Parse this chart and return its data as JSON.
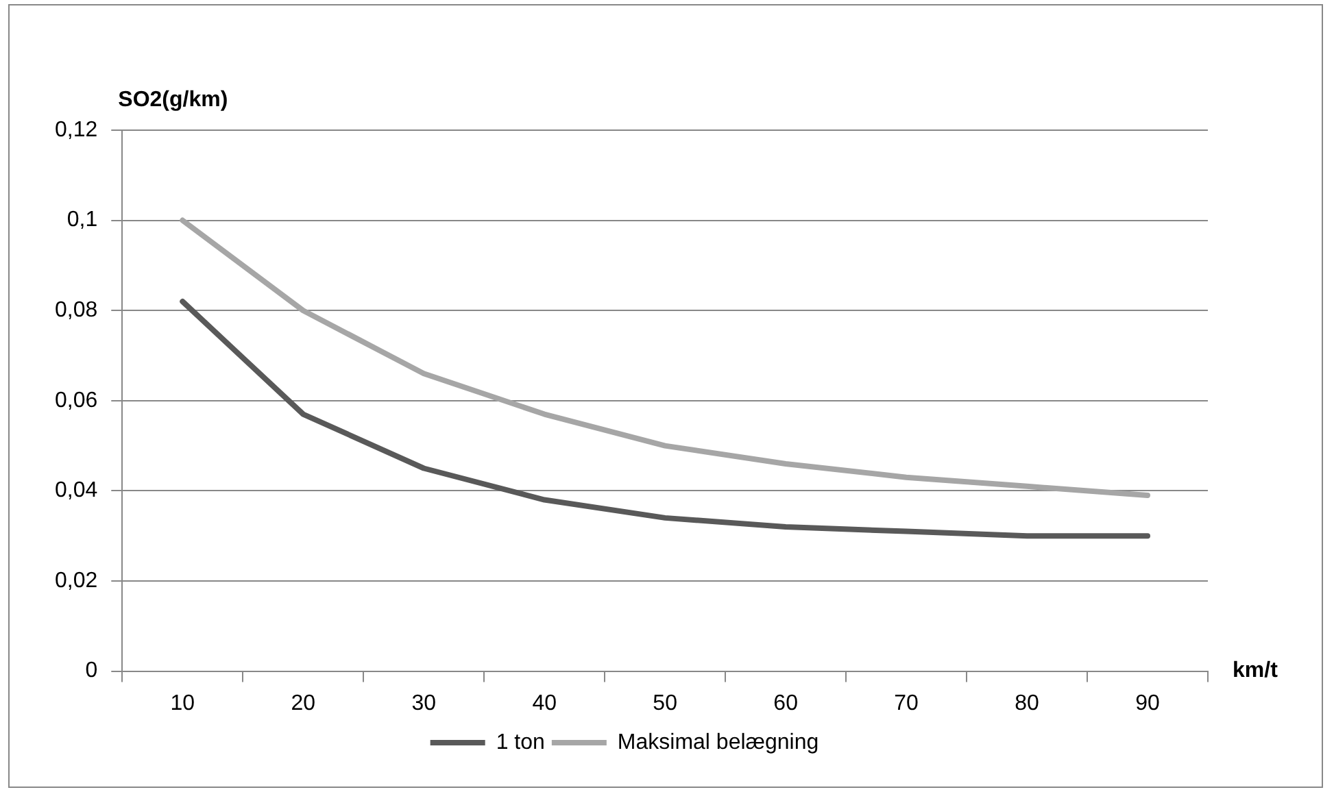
{
  "chart_data": {
    "type": "line",
    "ylabel": "SO2(g/km)",
    "xlabel": "km/t",
    "categories": [
      "10",
      "20",
      "30",
      "40",
      "50",
      "60",
      "70",
      "80",
      "90"
    ],
    "series": [
      {
        "name": "1 ton",
        "color": "#595959",
        "values": [
          0.082,
          0.057,
          0.045,
          0.038,
          0.034,
          0.032,
          0.031,
          0.03,
          0.03
        ]
      },
      {
        "name": "Maksimal belægning",
        "color": "#a6a6a6",
        "values": [
          0.1,
          0.08,
          0.066,
          0.057,
          0.05,
          0.046,
          0.043,
          0.041,
          0.039
        ]
      }
    ],
    "ylim": [
      0,
      0.12
    ],
    "yticks": [
      0,
      {
        "value": 0.02,
        "label": "0,02"
      },
      {
        "value": 0.04,
        "label": "0,04"
      },
      {
        "value": 0.06,
        "label": "0,06"
      },
      {
        "value": 0.08,
        "label": "0,08"
      },
      {
        "value": 0.1,
        "label": "0,1"
      },
      {
        "value": 0.12,
        "label": "0,12"
      }
    ],
    "grid": "y",
    "legend": "bottom",
    "marker": "none",
    "line_style": "solid"
  }
}
